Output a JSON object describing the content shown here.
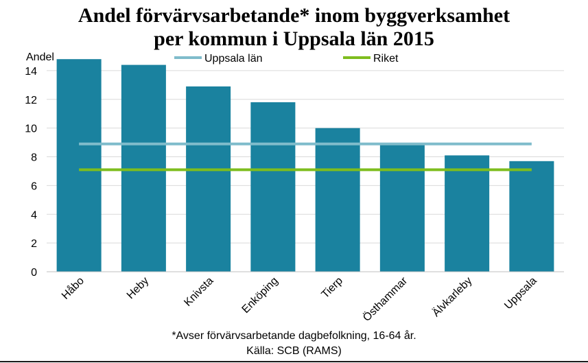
{
  "chart_data": {
    "type": "bar",
    "title_lines": [
      "Andel förvärvsarbetande* inom byggverksamhet",
      "per kommun i Uppsala län 2015"
    ],
    "ylabel": "Andel",
    "ylim": [
      0,
      15
    ],
    "yticks": [
      0,
      2,
      4,
      6,
      8,
      10,
      12,
      14
    ],
    "grid": true,
    "categories": [
      "Håbo",
      "Heby",
      "Knivsta",
      "Enköping",
      "Tierp",
      "Östhammar",
      "Älvkarleby",
      "Uppsala"
    ],
    "values": [
      14.8,
      14.4,
      12.9,
      11.8,
      10.0,
      8.9,
      8.1,
      7.7
    ],
    "bar_color": "#1a829f",
    "reference_lines": [
      {
        "name": "Uppsala län",
        "value": 8.9,
        "color": "#7fbccb"
      },
      {
        "name": "Riket",
        "value": 7.1,
        "color": "#7ebd1e"
      }
    ],
    "legend_position": "top",
    "footnote": "*Avser förvärvsarbetande dagbefolkning,  16-64 år.",
    "source": "Källa: SCB (RAMS)"
  }
}
